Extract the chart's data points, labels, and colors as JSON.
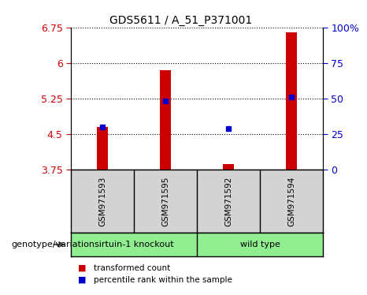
{
  "title": "GDS5611 / A_51_P371001",
  "samples": [
    "GSM971593",
    "GSM971595",
    "GSM971592",
    "GSM971594"
  ],
  "red_values": [
    4.65,
    5.85,
    3.87,
    6.65
  ],
  "blue_values": [
    4.65,
    5.2,
    4.62,
    5.28
  ],
  "ylim_left": [
    3.75,
    6.75
  ],
  "yticks_left": [
    3.75,
    4.5,
    5.25,
    6.0,
    6.75
  ],
  "ytick_labels_left": [
    "3.75",
    "4.5",
    "5.25",
    "6",
    "6.75"
  ],
  "ylim_right": [
    0,
    100
  ],
  "yticks_right": [
    0,
    25,
    50,
    75,
    100
  ],
  "ytick_labels_right": [
    "0",
    "25",
    "50",
    "75",
    "100%"
  ],
  "sample_bg_color": "#D3D3D3",
  "plot_bg_color": "#FFFFFF",
  "bar_color": "#CC0000",
  "dot_color": "#0000CC",
  "left_tick_color": "#CC0000",
  "right_tick_color": "#0000CC",
  "legend_red": "transformed count",
  "legend_blue": "percentile rank within the sample",
  "genotype_label": "genotype/variation",
  "knockout_label": "sirtuin-1 knockout",
  "wildtype_label": "wild type",
  "green_color": "#90EE90"
}
